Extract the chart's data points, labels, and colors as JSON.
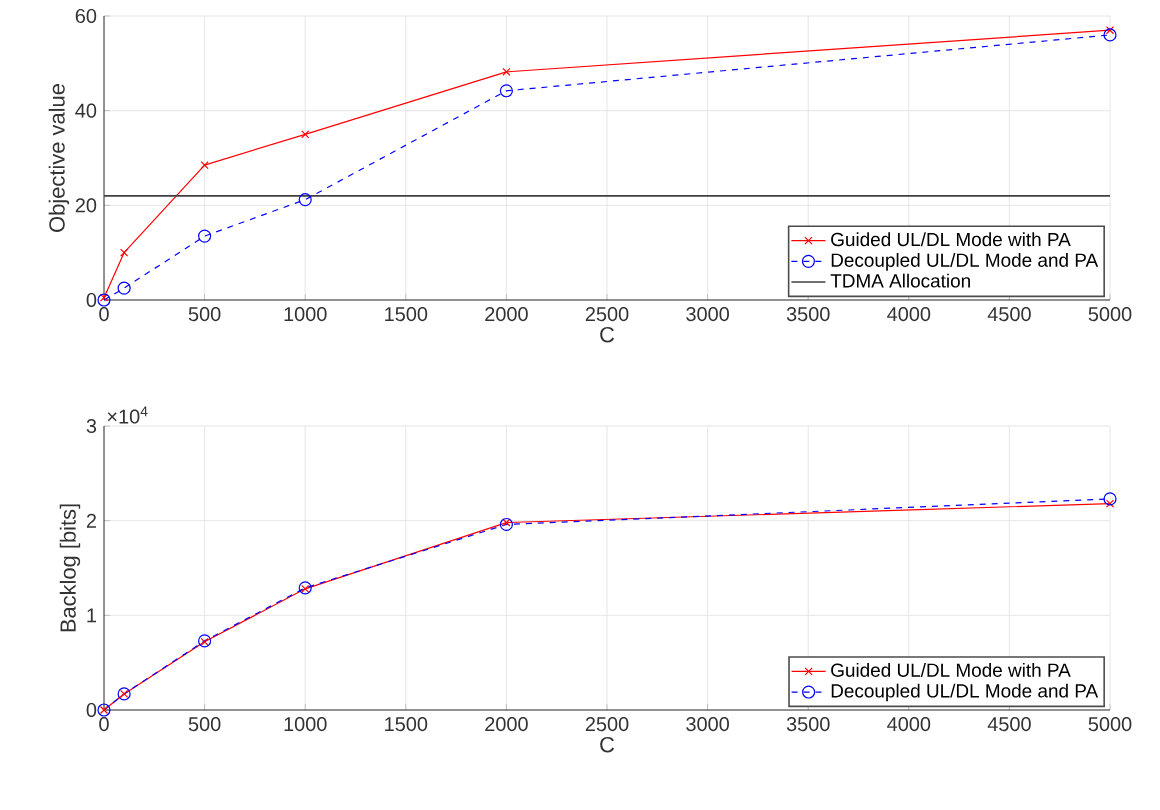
{
  "chart_data": [
    {
      "type": "line",
      "xlabel": "C",
      "ylabel": "Objective value",
      "x": [
        0,
        100,
        500,
        1000,
        2000,
        5000
      ],
      "xlim": [
        0,
        5000
      ],
      "xticks": [
        0,
        500,
        1000,
        1500,
        2000,
        2500,
        3000,
        3500,
        4000,
        4500,
        5000
      ],
      "ylim": [
        0,
        60
      ],
      "yticks": [
        0,
        20,
        40,
        60
      ],
      "grid": true,
      "legend": "bottom right",
      "series": [
        {
          "name": "Guided UL/DL Mode with PA",
          "color": "#ff0000",
          "marker": "cross",
          "line_style": "solid",
          "values": [
            0.5,
            10,
            28.5,
            35,
            48.2,
            57
          ]
        },
        {
          "name": "Decoupled UL/DL Mode and PA",
          "color": "#0000ff",
          "marker": "circle",
          "line_style": "dashed",
          "values": [
            0,
            2.5,
            13.5,
            21.2,
            44.2,
            56
          ]
        },
        {
          "name": "TDMA Allocation",
          "color": "#404040",
          "marker": "none",
          "line_style": "solid",
          "x": [
            0,
            5000
          ],
          "values": [
            22,
            22
          ]
        }
      ]
    },
    {
      "type": "line",
      "xlabel": "C",
      "ylabel": "Backlog [bits]",
      "annotations": [
        "×10$^{4}$"
      ],
      "x": [
        0,
        100,
        500,
        1000,
        2000,
        5000
      ],
      "xlim": [
        0,
        5000
      ],
      "xticks": [
        0,
        500,
        1000,
        1500,
        2000,
        2500,
        3000,
        3500,
        4000,
        4500,
        5000
      ],
      "ylim": [
        0,
        3
      ],
      "yticks": [
        0,
        1,
        2,
        3
      ],
      "grid": true,
      "legend": "bottom right",
      "series": [
        {
          "name": "Guided UL/DL Mode with PA",
          "color": "#ff0000",
          "marker": "cross",
          "line_style": "solid",
          "values": [
            0,
            0.17,
            0.72,
            1.28,
            1.98,
            2.18
          ]
        },
        {
          "name": "Decoupled UL/DL Mode and PA",
          "color": "#0000ff",
          "marker": "circle",
          "line_style": "dashed",
          "values": [
            0,
            0.17,
            0.73,
            1.29,
            1.96,
            2.23
          ]
        }
      ]
    }
  ]
}
